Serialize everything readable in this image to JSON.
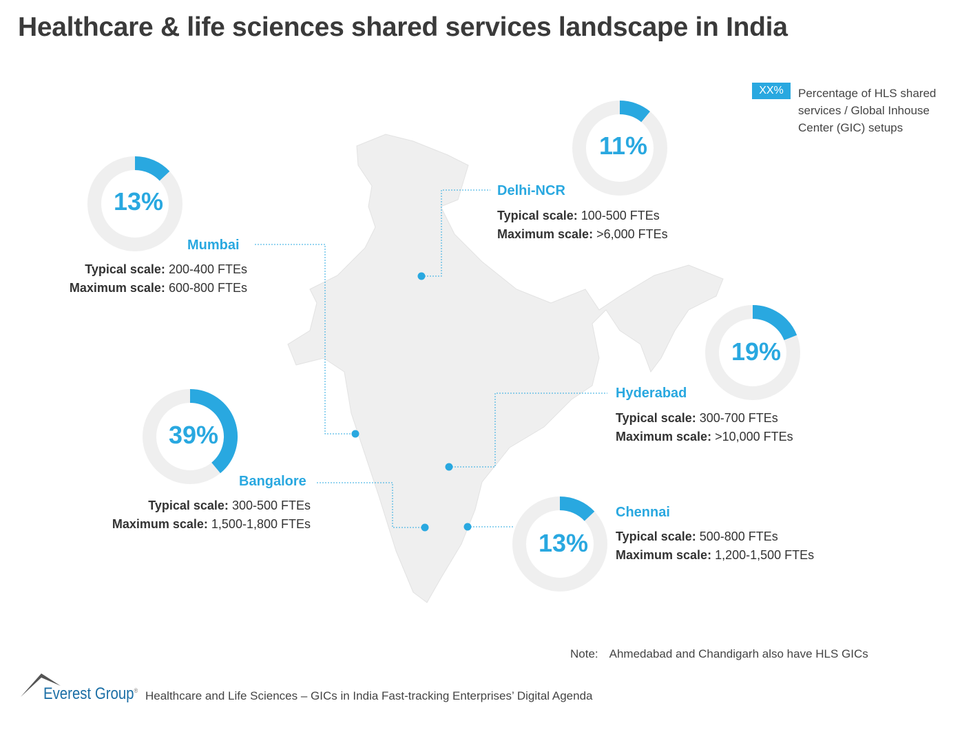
{
  "title": "Healthcare & life sciences shared services landscape in India",
  "legend": {
    "swatch_label": "XX%",
    "text": "Percentage of HLS shared services / Global Inhouse Center (GIC) setups"
  },
  "colors": {
    "accent": "#29a8e0",
    "ring": "#efefef",
    "map": "#efefef"
  },
  "typical_label": "Typical scale:",
  "maximum_label": "Maximum scale:",
  "cities": [
    {
      "name": "Delhi-NCR",
      "share_label": "11%",
      "share": 11,
      "typical": "100-500 FTEs",
      "maximum": ">6,000 FTEs"
    },
    {
      "name": "Mumbai",
      "share_label": "13%",
      "share": 13,
      "typical": "200-400 FTEs",
      "maximum": "600-800 FTEs"
    },
    {
      "name": "Hyderabad",
      "share_label": "19%",
      "share": 19,
      "typical": "300-700 FTEs",
      "maximum": ">10,000 FTEs"
    },
    {
      "name": "Bangalore",
      "share_label": "39%",
      "share": 39,
      "typical": "300-500 FTEs",
      "maximum": "1,500-1,800 FTEs"
    },
    {
      "name": "Chennai",
      "share_label": "13%",
      "share": 13,
      "typical": "500-800 FTEs",
      "maximum": "1,200-1,500 FTEs"
    }
  ],
  "note": {
    "label": "Note:",
    "text": "Ahmedabad and Chandigarh also have HLS GICs"
  },
  "footer": {
    "brand": "Everest Group",
    "registered": "®",
    "text": "Healthcare and Life Sciences – GICs in India Fast-tracking Enterprises’ Digital Agenda"
  }
}
